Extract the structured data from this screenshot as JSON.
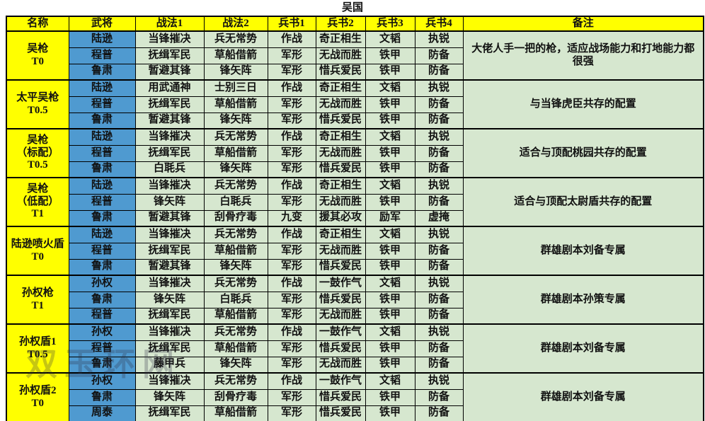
{
  "title": "吴国",
  "watermark": "双玉环网",
  "columns": [
    "名称",
    "武将",
    "战法1",
    "战法2",
    "兵书1",
    "兵书2",
    "兵书3",
    "兵书4",
    "备注"
  ],
  "colors": {
    "header_bg": "#ffff00",
    "name_bg": "#ffff00",
    "general_bg": "#4f9ad0",
    "cell_bg": "#d6e7cf",
    "border": "#000000"
  },
  "groups": [
    {
      "name_lines": [
        "吴枪",
        "T0"
      ],
      "note": "大佬人手一把的枪，适应战场能力和打地能力都很强",
      "rows": [
        {
          "general": "陆逊",
          "tactic1": "当锋摧决",
          "tactic2": "兵无常势",
          "book1": "作战",
          "book2": "奇正相生",
          "book3": "文韬",
          "book4": "执锐"
        },
        {
          "general": "程普",
          "tactic1": "抚缉军民",
          "tactic2": "草船借箭",
          "book1": "军形",
          "book2": "无战而胜",
          "book3": "铁甲",
          "book4": "防备"
        },
        {
          "general": "鲁肃",
          "tactic1": "暂避其锋",
          "tactic2": "锋矢阵",
          "book1": "军形",
          "book2": "惜兵爱民",
          "book3": "铁甲",
          "book4": "防备"
        }
      ]
    },
    {
      "name_lines": [
        "太平吴枪",
        "T0.5"
      ],
      "note": "与当锋虎臣共存的配置",
      "rows": [
        {
          "general": "陆逊",
          "tactic1": "用武通神",
          "tactic2": "士别三日",
          "book1": "作战",
          "book2": "奇正相生",
          "book3": "文韬",
          "book4": "执锐"
        },
        {
          "general": "程普",
          "tactic1": "抚缉军民",
          "tactic2": "草船借箭",
          "book1": "军形",
          "book2": "无战而胜",
          "book3": "铁甲",
          "book4": "防备"
        },
        {
          "general": "鲁肃",
          "tactic1": "暂避其锋",
          "tactic2": "锋矢阵",
          "book1": "军形",
          "book2": "惜兵爱民",
          "book3": "铁甲",
          "book4": "防备"
        }
      ]
    },
    {
      "name_lines": [
        "吴枪",
        "（标配）",
        "T0.5"
      ],
      "note": "适合与顶配桃园共存的配置",
      "rows": [
        {
          "general": "陆逊",
          "tactic1": "当锋摧决",
          "tactic2": "兵无常势",
          "book1": "作战",
          "book2": "奇正相生",
          "book3": "文韬",
          "book4": "执锐"
        },
        {
          "general": "程普",
          "tactic1": "抚缉军民",
          "tactic2": "草船借箭",
          "book1": "军形",
          "book2": "无战而胜",
          "book3": "铁甲",
          "book4": "防备"
        },
        {
          "general": "鲁肃",
          "tactic1": "白毦兵",
          "tactic2": "锋矢阵",
          "book1": "军形",
          "book2": "惜兵爱民",
          "book3": "铁甲",
          "book4": "防备"
        }
      ]
    },
    {
      "name_lines": [
        "吴枪",
        "（低配）",
        "T1"
      ],
      "note": "适合与顶配太尉盾共存的配置",
      "rows": [
        {
          "general": "陆逊",
          "tactic1": "当锋摧决",
          "tactic2": "兵无常势",
          "book1": "作战",
          "book2": "奇正相生",
          "book3": "文韬",
          "book4": "执锐"
        },
        {
          "general": "程普",
          "tactic1": "锋矢阵",
          "tactic2": "白毦兵",
          "book1": "军形",
          "book2": "无战而胜",
          "book3": "铁甲",
          "book4": "防备"
        },
        {
          "general": "鲁肃",
          "tactic1": "暂避其锋",
          "tactic2": "刮骨疗毒",
          "book1": "九变",
          "book2": "援其必攻",
          "book3": "励军",
          "book4": "虚掩"
        }
      ]
    },
    {
      "name_lines": [
        "陆逊喷火盾",
        "T0"
      ],
      "note": "群雄剧本刘备专属",
      "rows": [
        {
          "general": "陆逊",
          "tactic1": "当锋摧决",
          "tactic2": "兵无常势",
          "book1": "作战",
          "book2": "奇正相生",
          "book3": "文韬",
          "book4": "执锐"
        },
        {
          "general": "程普",
          "tactic1": "抚缉军民",
          "tactic2": "草船借箭",
          "book1": "军形",
          "book2": "无战而胜",
          "book3": "铁甲",
          "book4": "防备"
        },
        {
          "general": "鲁肃",
          "tactic1": "暂避其锋",
          "tactic2": "锋矢阵",
          "book1": "军形",
          "book2": "惜兵爱民",
          "book3": "铁甲",
          "book4": "防备"
        }
      ]
    },
    {
      "name_lines": [
        "孙权枪",
        "T1"
      ],
      "note": "群雄剧本孙策专属",
      "rows": [
        {
          "general": "孙权",
          "tactic1": "当锋摧决",
          "tactic2": "兵无常势",
          "book1": "作战",
          "book2": "一鼓作气",
          "book3": "文韬",
          "book4": "执锐"
        },
        {
          "general": "鲁肃",
          "tactic1": "锋矢阵",
          "tactic2": "白毦兵",
          "book1": "军形",
          "book2": "惜兵爱民",
          "book3": "铁甲",
          "book4": "防备"
        },
        {
          "general": "程普",
          "tactic1": "抚缉军民",
          "tactic2": "草船借箭",
          "book1": "军形",
          "book2": "无战而胜",
          "book3": "铁甲",
          "book4": "防备"
        }
      ]
    },
    {
      "name_lines": [
        "孙权盾1",
        "T0.5"
      ],
      "note": "群雄剧本刘备专属",
      "rows": [
        {
          "general": "孙权",
          "tactic1": "当锋摧决",
          "tactic2": "兵无常势",
          "book1": "作战",
          "book2": "一鼓作气",
          "book3": "文韬",
          "book4": "执锐"
        },
        {
          "general": "程普",
          "tactic1": "抚缉军民",
          "tactic2": "草船借箭",
          "book1": "军形",
          "book2": "惜兵爱民",
          "book3": "铁甲",
          "book4": "防备"
        },
        {
          "general": "鲁肃",
          "tactic1": "藤甲兵",
          "tactic2": "锋矢阵",
          "book1": "军形",
          "book2": "无战而胜",
          "book3": "铁甲",
          "book4": "防备"
        }
      ]
    },
    {
      "name_lines": [
        "孙权盾2",
        "T0"
      ],
      "note": "群雄剧本刘备专属",
      "rows": [
        {
          "general": "孙权",
          "tactic1": "当锋摧决",
          "tactic2": "兵无常势",
          "book1": "作战",
          "book2": "一鼓作气",
          "book3": "文韬",
          "book4": "执锐"
        },
        {
          "general": "鲁肃",
          "tactic1": "锋矢阵",
          "tactic2": "刮骨疗毒",
          "book1": "军形",
          "book2": "惜兵爱民",
          "book3": "铁甲",
          "book4": "防备"
        },
        {
          "general": "周泰",
          "tactic1": "抚缉军民",
          "tactic2": "草船借箭",
          "book1": "军形",
          "book2": "惜兵爱民",
          "book3": "铁甲",
          "book4": "防备"
        }
      ]
    }
  ]
}
